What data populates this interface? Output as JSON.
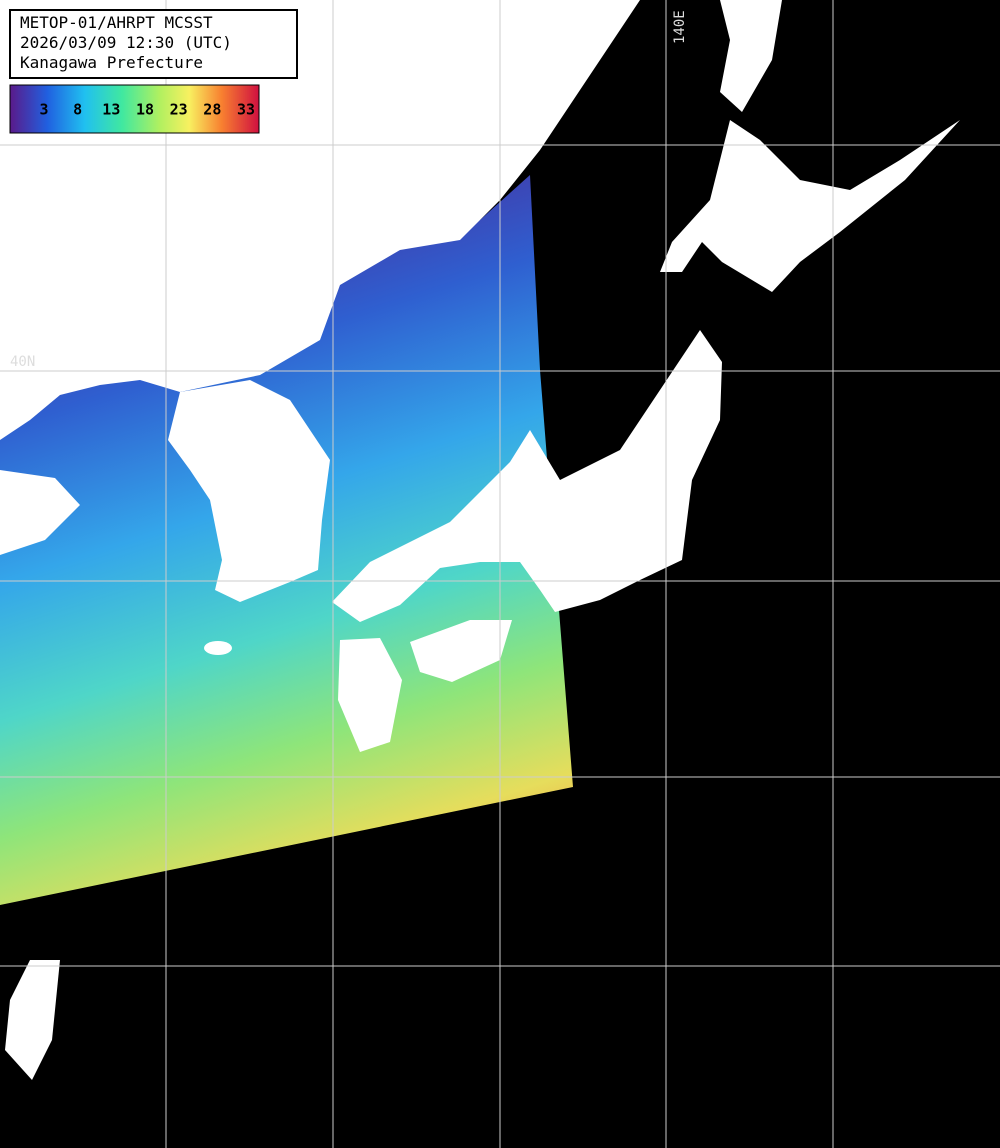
{
  "header": {
    "lines": [
      "METOP-01/AHRPT MCSST",
      "2026/03/09 12:30 (UTC)",
      "Kanagawa Prefecture"
    ]
  },
  "colorbar": {
    "ticks": [
      3,
      8,
      13,
      18,
      23,
      28,
      33
    ]
  },
  "grid_labels": {
    "longitude": "140E",
    "latitude": "40N"
  }
}
